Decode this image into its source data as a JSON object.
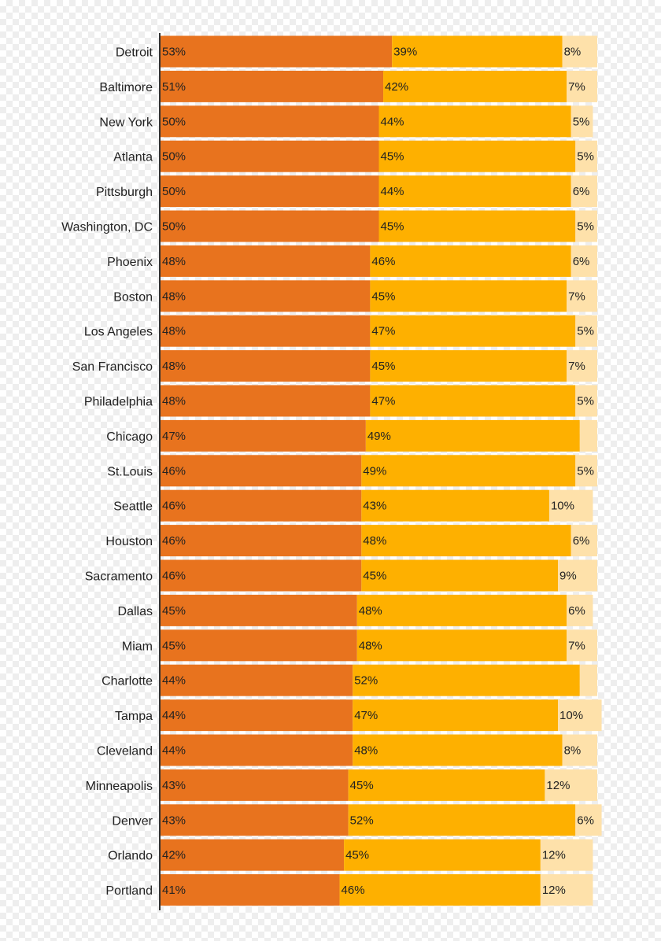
{
  "colors": {
    "series1": "#e8731e",
    "series2": "#feb000",
    "series3": "#fee1aa",
    "axis": "#333333",
    "text": "#222222"
  },
  "chart_data": {
    "type": "bar",
    "orientation": "horizontal",
    "stacked": true,
    "grid": false,
    "legend": "none",
    "xlim": [
      0,
      100
    ],
    "categories": [
      "Detroit",
      "Baltimore",
      "New York",
      "Atlanta",
      "Pittsburgh",
      "Washington, DC",
      "Phoenix",
      "Boston",
      "Los Angeles",
      "San Francisco",
      "Philadelphia",
      "Chicago",
      "St.Louis",
      "Seattle",
      "Houston",
      "Sacramento",
      "Dallas",
      "Miam",
      "Charlotte",
      "Tampa",
      "Cleveland",
      "Minneapolis",
      "Denver",
      "Orlando",
      "Portland"
    ],
    "series": [
      {
        "values": [
          53,
          51,
          50,
          50,
          50,
          50,
          48,
          48,
          48,
          48,
          48,
          47,
          46,
          46,
          46,
          46,
          45,
          45,
          44,
          44,
          44,
          43,
          43,
          42,
          41
        ],
        "labels": [
          "53%",
          "51%",
          "50%",
          "50%",
          "50%",
          "50%",
          "48%",
          "48%",
          "48%",
          "48%",
          "48%",
          "47%",
          "46%",
          "46%",
          "46%",
          "46%",
          "45%",
          "45%",
          "44%",
          "44%",
          "44%",
          "43%",
          "43%",
          "42%",
          "41%"
        ]
      },
      {
        "values": [
          39,
          42,
          44,
          45,
          44,
          45,
          46,
          45,
          47,
          45,
          47,
          49,
          49,
          43,
          48,
          45,
          48,
          48,
          52,
          47,
          48,
          45,
          52,
          45,
          46
        ],
        "labels": [
          "39%",
          "42%",
          "44%",
          "45%",
          "44%",
          "45%",
          "46%",
          "45%",
          "47%",
          "45%",
          "47%",
          "49%",
          "49%",
          "43%",
          "48%",
          "45%",
          "48%",
          "48%",
          "52%",
          "47%",
          "48%",
          "45%",
          "52%",
          "45%",
          "46%"
        ]
      },
      {
        "values": [
          8,
          7,
          5,
          5,
          6,
          5,
          6,
          7,
          5,
          7,
          5,
          4,
          5,
          10,
          6,
          9,
          6,
          7,
          4,
          10,
          8,
          12,
          6,
          12,
          12
        ],
        "labels": [
          "8%",
          "7%",
          "5%",
          "5%",
          "6%",
          "5%",
          "6%",
          "7%",
          "5%",
          "7%",
          "5%",
          "",
          "5%",
          "10%",
          "6%",
          "9%",
          "6%",
          "7%",
          "",
          "10%",
          "8%",
          "12%",
          "6%",
          "12%",
          "12%"
        ]
      }
    ]
  }
}
